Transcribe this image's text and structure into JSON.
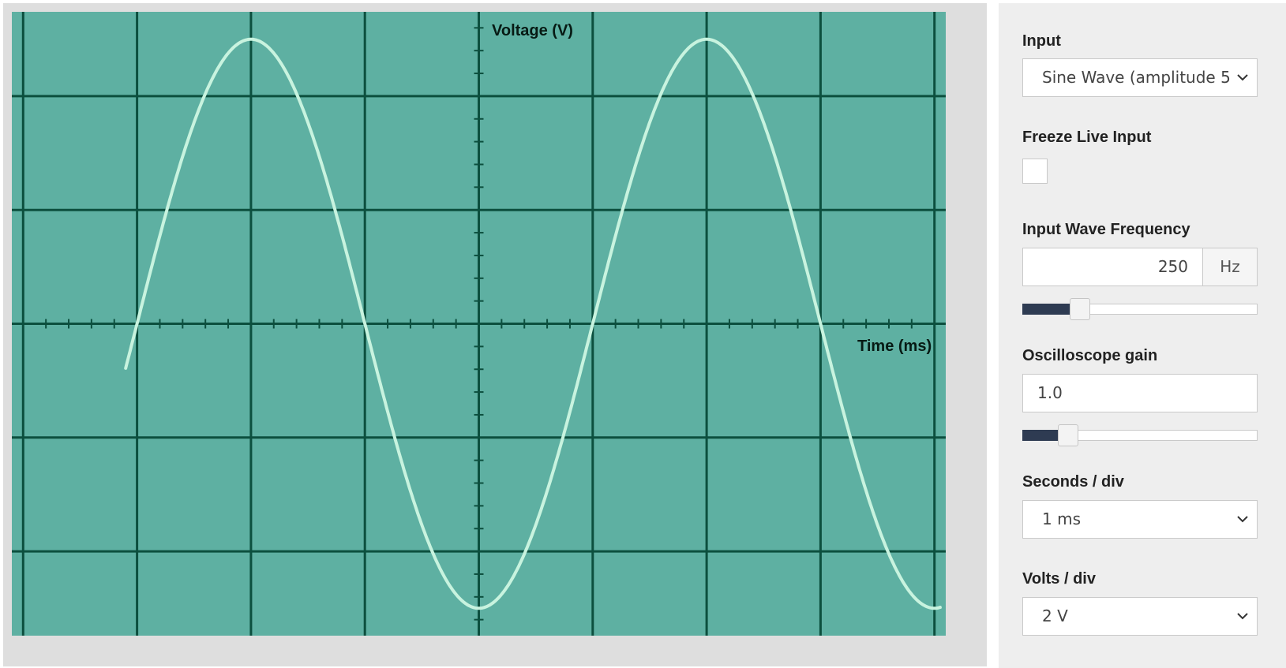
{
  "scope": {
    "y_axis_title": "Voltage (V)",
    "x_axis_title": "Time (ms)",
    "colors": {
      "screen": "#5eb0a2",
      "grid": "#0c4f3e",
      "trace": "#c8f3df",
      "frame": "#dedede"
    }
  },
  "chart_data": {
    "type": "line",
    "xlabel": "Time (ms)",
    "ylabel": "Voltage (V)",
    "divisions_x": 8.2,
    "divisions_y": 5.5,
    "amplitude_volts": 5,
    "frequency_hz": 250,
    "volts_per_div": 2,
    "ms_per_div": 1,
    "trace_x_range_ms": [
      -3.1,
      4.05
    ],
    "grid": true,
    "series": [
      {
        "x": [
          -3,
          -2,
          -1,
          0,
          1,
          2,
          3,
          4
        ],
        "values": [
          0,
          5,
          0,
          -5,
          0,
          5,
          0,
          -5
        ]
      }
    ]
  },
  "controls": {
    "input": {
      "label": "Input",
      "value": "Sine Wave (amplitude 5"
    },
    "freeze": {
      "label": "Freeze Live Input",
      "checked": false
    },
    "frequency": {
      "label": "Input Wave Frequency",
      "value": "250",
      "unit": "Hz",
      "slider_fraction": 0.245
    },
    "gain": {
      "label": "Oscilloscope gain",
      "value": "1.0",
      "slider_fraction": 0.195
    },
    "seconds_div": {
      "label": "Seconds / div",
      "value": "1 ms"
    },
    "volts_div": {
      "label": "Volts / div",
      "value": "2 V"
    }
  }
}
